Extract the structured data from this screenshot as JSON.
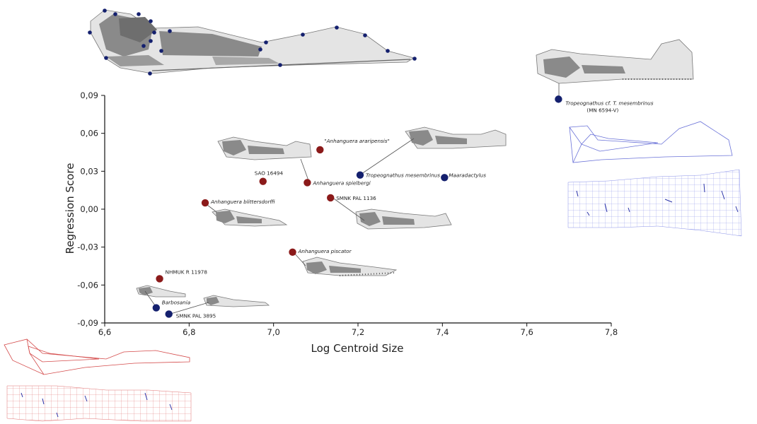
{
  "colors": {
    "red": "#8b1a1a",
    "navy": "#14206e",
    "skull_light": "#e4e4e4",
    "skull_dark": "#8a8a8a",
    "blue_line": "#6a72d8",
    "red_line": "#d44a4a",
    "axis": "#111111"
  },
  "chart_data": {
    "type": "scatter",
    "xlabel": "Log Centroid Size",
    "ylabel": "Regression Score",
    "xlim": [
      6.6,
      7.8
    ],
    "ylim": [
      -0.09,
      0.09
    ],
    "xticks": [
      6.6,
      6.8,
      7.0,
      7.2,
      7.4,
      7.6,
      7.8
    ],
    "xtick_labels": [
      "6,6",
      "6,8",
      "7,0",
      "7,2",
      "7,4",
      "7,6",
      "7,8"
    ],
    "yticks": [
      0.09,
      0.06,
      0.03,
      0.0,
      -0.03,
      -0.06,
      -0.09
    ],
    "ytick_labels": [
      "0,09",
      "0,06",
      "0,03",
      "0,00",
      "-0,03",
      "-0,06",
      "-0,09"
    ],
    "grid": false,
    "points": [
      {
        "label": "Tropeognathus cf. T. mesembrinus",
        "label2": "(MN 6594-V)",
        "x": 7.675,
        "y": 0.087,
        "group": "navy",
        "italic": true
      },
      {
        "label": "\"Anhanguera araripensis\"",
        "x": 7.11,
        "y": 0.047,
        "group": "red",
        "italic": true
      },
      {
        "label": "Tropeognathus mesembrinus",
        "x": 7.205,
        "y": 0.027,
        "group": "navy",
        "italic": true
      },
      {
        "label": "Maaradactylus",
        "x": 7.405,
        "y": 0.025,
        "group": "navy",
        "italic": true
      },
      {
        "label": "SAO 16494",
        "x": 6.975,
        "y": 0.022,
        "group": "red",
        "italic": false
      },
      {
        "label": "Anhanguera spielbergi",
        "x": 7.08,
        "y": 0.021,
        "group": "red",
        "italic": true
      },
      {
        "label": "SMNK PAL 1136",
        "x": 7.135,
        "y": 0.009,
        "group": "red",
        "italic": false
      },
      {
        "label": "Anhanguera blittersdorffi",
        "x": 6.838,
        "y": 0.005,
        "group": "red",
        "italic": true
      },
      {
        "label": "Anhanguera piscator",
        "x": 7.045,
        "y": -0.034,
        "group": "red",
        "italic": true
      },
      {
        "label": "NHMUK R 11978",
        "x": 6.73,
        "y": -0.055,
        "group": "red",
        "italic": false
      },
      {
        "label": "Barbosania",
        "x": 6.722,
        "y": -0.078,
        "group": "navy",
        "italic": true
      },
      {
        "label": "SMNK PAL 3895",
        "x": 6.752,
        "y": -0.083,
        "group": "navy",
        "italic": false
      }
    ]
  }
}
